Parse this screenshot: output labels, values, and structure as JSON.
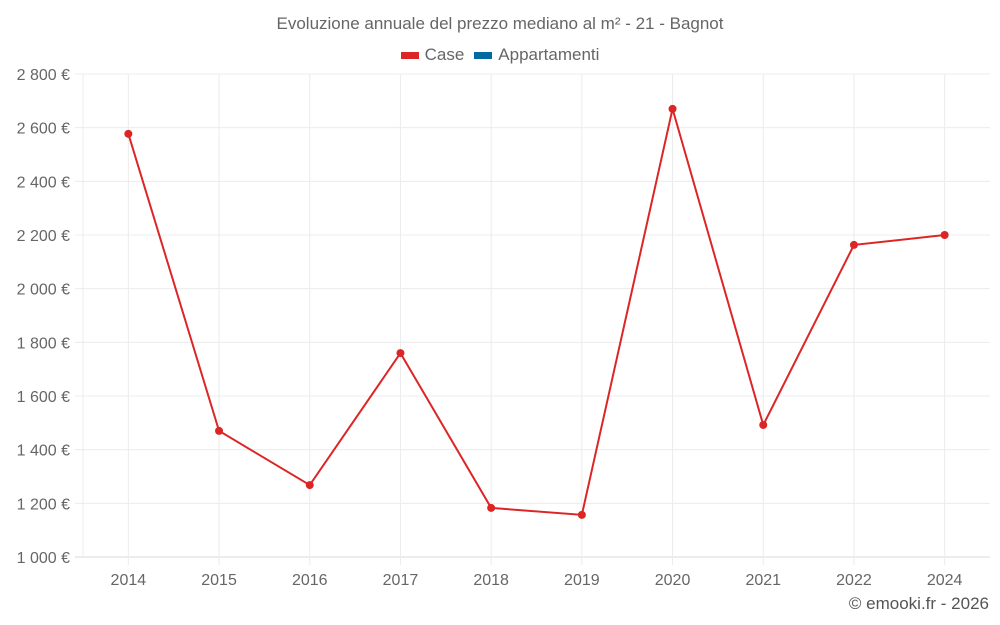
{
  "title": "Evoluzione annuale del prezzo mediano al m² - 21 - Bagnot",
  "legend": [
    {
      "label": "Case",
      "color": "#dc2626"
    },
    {
      "label": "Appartamenti",
      "color": "#0369a1"
    }
  ],
  "credit": "© emooki.fr - 2026",
  "chart_data": {
    "type": "line",
    "title": "Evoluzione annuale del prezzo mediano al m² - 21 - Bagnot",
    "xlabel": "",
    "ylabel": "",
    "categories": [
      "2014",
      "2015",
      "2016",
      "2017",
      "2018",
      "2019",
      "2020",
      "2021",
      "2022",
      "2024"
    ],
    "series": [
      {
        "name": "Case",
        "color": "#dc2626",
        "values": [
          2577,
          1470,
          1268,
          1760,
          1183,
          1157,
          2670,
          1492,
          2163,
          2200
        ]
      },
      {
        "name": "Appartamenti",
        "color": "#0369a1",
        "values": []
      }
    ],
    "ylim": [
      1000,
      2800
    ],
    "yticks": [
      1000,
      1200,
      1400,
      1600,
      1800,
      2000,
      2200,
      2400,
      2600,
      2800
    ],
    "ytick_labels": [
      "1 000 €",
      "1 200 €",
      "1 400 €",
      "1 600 €",
      "1 800 €",
      "2 000 €",
      "2 200 €",
      "2 400 €",
      "2 600 €",
      "2 800 €"
    ],
    "grid": true,
    "legend_position": "top"
  }
}
